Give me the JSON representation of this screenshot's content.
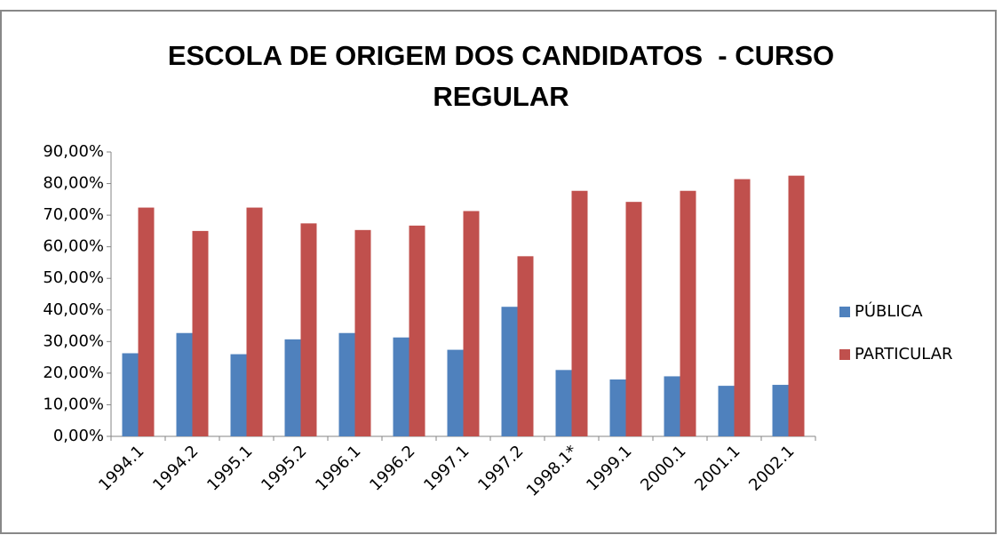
{
  "chart_data": {
    "type": "bar",
    "title": "ESCOLA DE ORIGEM DOS CANDIDATOS  - CURSO REGULAR",
    "categories": [
      "1994.1",
      "1994.2",
      "1995.1",
      "1995.2",
      "1996.1",
      "1996.2",
      "1997.1",
      "1997.2",
      "1998.1*",
      "1999.1",
      "2000.1",
      "2001.1",
      "2002.1"
    ],
    "series": [
      {
        "name": "PÚBLICA",
        "color": "#4f81bd",
        "values": [
          26.3,
          32.7,
          26,
          30.7,
          32.7,
          31.3,
          27.4,
          41,
          21,
          18,
          19,
          16,
          16.3
        ]
      },
      {
        "name": "PARTICULAR",
        "color": "#c0504d",
        "values": [
          72.4,
          65,
          72.4,
          67.4,
          65.3,
          66.7,
          71.3,
          57,
          77.7,
          74.2,
          77.7,
          81.4,
          82.5
        ]
      }
    ],
    "ylim": [
      0,
      90
    ],
    "yticks": [
      {
        "value": 0,
        "label": "0,00%"
      },
      {
        "value": 10,
        "label": "10,00%"
      },
      {
        "value": 20,
        "label": "20,00%"
      },
      {
        "value": 30,
        "label": "30,00%"
      },
      {
        "value": 40,
        "label": "40,00%"
      },
      {
        "value": 50,
        "label": "50,00%"
      },
      {
        "value": 60,
        "label": "60,00%"
      },
      {
        "value": 70,
        "label": "70,00%"
      },
      {
        "value": 80,
        "label": "80,00%"
      },
      {
        "value": 90,
        "label": "90,00%"
      }
    ],
    "grid": false,
    "legend": "right"
  }
}
